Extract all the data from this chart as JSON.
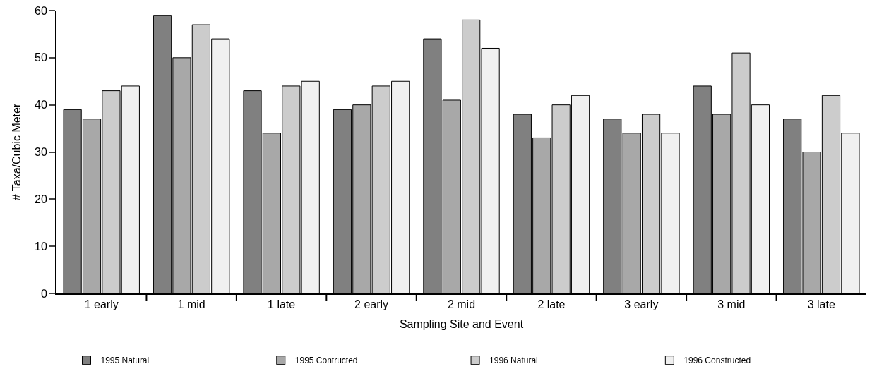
{
  "chart_data": {
    "type": "bar",
    "xlabel": "Sampling Site and Event",
    "ylabel": "# Taxa/Cubic Meter",
    "categories": [
      "1 early",
      "1 mid",
      "1 late",
      "2 early",
      "2 mid",
      "2 late",
      "3 early",
      "3 mid",
      "3 late"
    ],
    "series": [
      {
        "name": "1995 Natural",
        "color": "#808080",
        "values": [
          39,
          59,
          43,
          39,
          54,
          38,
          37,
          44,
          37
        ]
      },
      {
        "name": "1995 Contructed",
        "color": "#a8a8a8",
        "values": [
          37,
          50,
          34,
          40,
          41,
          33,
          34,
          38,
          30
        ]
      },
      {
        "name": "1996 Natural",
        "color": "#cccccc",
        "values": [
          43,
          57,
          44,
          44,
          58,
          40,
          38,
          51,
          42
        ]
      },
      {
        "name": "1996 Constructed",
        "color": "#f0f0f0",
        "values": [
          44,
          54,
          45,
          45,
          52,
          42,
          34,
          40,
          34
        ]
      }
    ],
    "ylim": [
      0,
      60
    ],
    "yticks": [
      0,
      10,
      20,
      30,
      40,
      50,
      60
    ],
    "legend": "bottom"
  }
}
